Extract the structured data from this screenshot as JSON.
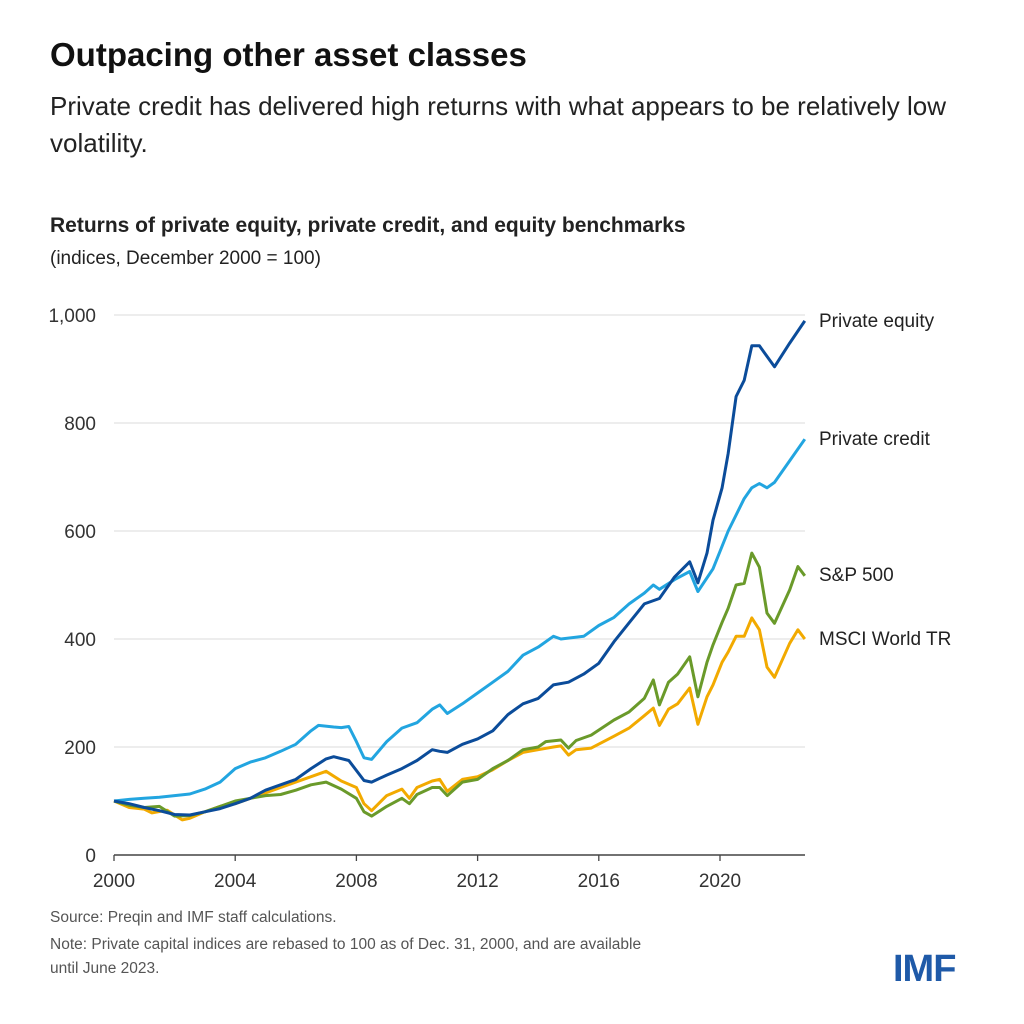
{
  "title": "Outpacing other asset classes",
  "subtitle": "Private credit has delivered high returns with what appears to be relatively low volatility.",
  "source": "Source: Preqin and IMF staff calculations.",
  "note_line1": "Note: Private capital indices are rebased to 100 as of Dec. 31, 2000, and are available",
  "note_line2": "until June 2023.",
  "logo": "IMF",
  "chart_data": {
    "type": "line",
    "title": "Returns of private equity, private credit, and equity benchmarks",
    "subtitle": "(indices, December 2000 = 100)",
    "xlim": [
      2000,
      2023
    ],
    "ylim": [
      0,
      1000
    ],
    "xticks": [
      2000,
      2004,
      2008,
      2012,
      2016,
      2020
    ],
    "yticks": [
      0,
      200,
      400,
      600,
      800,
      1000
    ],
    "ytick_labels": [
      "0",
      "200",
      "400",
      "600",
      "800",
      "1,000"
    ],
    "grid": true,
    "legend": "direct labels at line ends",
    "series": [
      {
        "name": "Private equity",
        "color": "#0b4c9a",
        "x": [
          2000,
          2000.5,
          2001,
          2001.5,
          2002,
          2002.5,
          2003,
          2003.5,
          2004,
          2004.5,
          2005,
          2005.5,
          2006,
          2006.5,
          2007,
          2007.25,
          2007.75,
          2008.25,
          2008.5,
          2009,
          2009.5,
          2010,
          2010.5,
          2010.75,
          2011,
          2011.5,
          2012,
          2012.5,
          2013,
          2013.5,
          2014,
          2014.5,
          2015,
          2015.5,
          2016,
          2016.5,
          2017,
          2017.5,
          2018,
          2018.5,
          2019,
          2019.27,
          2019.57,
          2019.77,
          2020.07,
          2020.27,
          2020.53,
          2020.8,
          2021.05,
          2021.3,
          2021.8,
          2022.3,
          2022.8
        ],
        "values": [
          100,
          95,
          88,
          82,
          75,
          74,
          80,
          86,
          95,
          105,
          120,
          130,
          140,
          160,
          178,
          182,
          175,
          138,
          135,
          148,
          160,
          175,
          195,
          192,
          190,
          205,
          215,
          230,
          260,
          280,
          290,
          315,
          320,
          335,
          355,
          395,
          430,
          465,
          475,
          515,
          543,
          504,
          559,
          620,
          680,
          744,
          849,
          879,
          943,
          943,
          904,
          948,
          989
        ]
      },
      {
        "name": "Private credit",
        "color": "#22a5e0",
        "x": [
          2000,
          2000.5,
          2001,
          2001.5,
          2002,
          2002.5,
          2003,
          2003.5,
          2004,
          2004.5,
          2005,
          2005.5,
          2006,
          2006.5,
          2006.75,
          2007.25,
          2007.5,
          2007.75,
          2008,
          2008.25,
          2008.5,
          2009,
          2009.5,
          2010,
          2010.5,
          2010.75,
          2011,
          2011.5,
          2012,
          2012.5,
          2013,
          2013.5,
          2014,
          2014.5,
          2014.75,
          2015.5,
          2016,
          2016.5,
          2017,
          2017.5,
          2017.8,
          2018,
          2018.5,
          2019,
          2019.27,
          2019.77,
          2020.27,
          2020.8,
          2021.05,
          2021.3,
          2021.55,
          2021.8,
          2022.3,
          2022.8
        ],
        "values": [
          100,
          103,
          105,
          107,
          110,
          113,
          122,
          135,
          160,
          172,
          180,
          192,
          205,
          230,
          240,
          237,
          236,
          238,
          210,
          180,
          177,
          210,
          235,
          245,
          270,
          278,
          262,
          280,
          300,
          320,
          340,
          370,
          385,
          405,
          400,
          405,
          425,
          440,
          465,
          485,
          500,
          492,
          510,
          525,
          488,
          530,
          600,
          660,
          680,
          688,
          680,
          690,
          730,
          770
        ]
      },
      {
        "name": "S&P 500",
        "color": "#6a9a2a",
        "x": [
          2000,
          2000.5,
          2001,
          2001.5,
          2002,
          2002.5,
          2003,
          2003.5,
          2004,
          2004.5,
          2005,
          2005.5,
          2006,
          2006.5,
          2007,
          2007.5,
          2008,
          2008.25,
          2008.5,
          2009,
          2009.5,
          2009.75,
          2010,
          2010.5,
          2010.75,
          2011,
          2011.5,
          2012,
          2012.5,
          2013,
          2013.5,
          2014,
          2014.25,
          2014.75,
          2015,
          2015.25,
          2015.75,
          2016.5,
          2017,
          2017.5,
          2017.8,
          2018.0,
          2018.3,
          2018.6,
          2019.0,
          2019.27,
          2019.57,
          2019.77,
          2020.07,
          2020.27,
          2020.53,
          2020.8,
          2021.05,
          2021.3,
          2021.55,
          2021.8,
          2022.3,
          2022.57,
          2022.8
        ],
        "values": [
          100,
          92,
          88,
          90,
          72,
          73,
          80,
          90,
          100,
          105,
          110,
          112,
          120,
          130,
          135,
          122,
          105,
          80,
          72,
          90,
          105,
          95,
          112,
          125,
          125,
          110,
          135,
          140,
          160,
          175,
          195,
          200,
          210,
          213,
          198,
          212,
          222,
          250,
          265,
          290,
          324,
          278,
          320,
          335,
          367,
          293,
          357,
          389,
          431,
          457,
          500,
          503,
          559,
          533,
          448,
          429,
          491,
          534,
          517
        ]
      },
      {
        "name": "MSCI World TR",
        "color": "#f2aa00",
        "x": [
          2000,
          2000.5,
          2001,
          2001.25,
          2001.75,
          2002.25,
          2002.5,
          2003,
          2003.5,
          2004,
          2004.5,
          2005,
          2005.5,
          2006,
          2006.5,
          2007,
          2007.5,
          2008,
          2008.25,
          2008.5,
          2009,
          2009.5,
          2009.75,
          2010,
          2010.5,
          2010.75,
          2011,
          2011.5,
          2012,
          2012.5,
          2013,
          2013.5,
          2014,
          2014.5,
          2014.75,
          2015,
          2015.25,
          2015.75,
          2016.5,
          2017,
          2017.5,
          2017.8,
          2018.0,
          2018.3,
          2018.6,
          2019.0,
          2019.27,
          2019.57,
          2019.77,
          2020.07,
          2020.27,
          2020.53,
          2020.8,
          2021.05,
          2021.3,
          2021.55,
          2021.8,
          2022.3,
          2022.57,
          2022.8
        ],
        "values": [
          100,
          88,
          85,
          78,
          83,
          65,
          68,
          80,
          90,
          95,
          105,
          115,
          125,
          135,
          145,
          155,
          137,
          125,
          95,
          82,
          110,
          122,
          105,
          125,
          137,
          140,
          118,
          140,
          145,
          158,
          175,
          190,
          195,
          200,
          202,
          185,
          195,
          198,
          220,
          235,
          258,
          272,
          240,
          270,
          280,
          309,
          242,
          293,
          315,
          357,
          376,
          405,
          405,
          439,
          417,
          348,
          329,
          392,
          417,
          400
        ]
      }
    ]
  }
}
